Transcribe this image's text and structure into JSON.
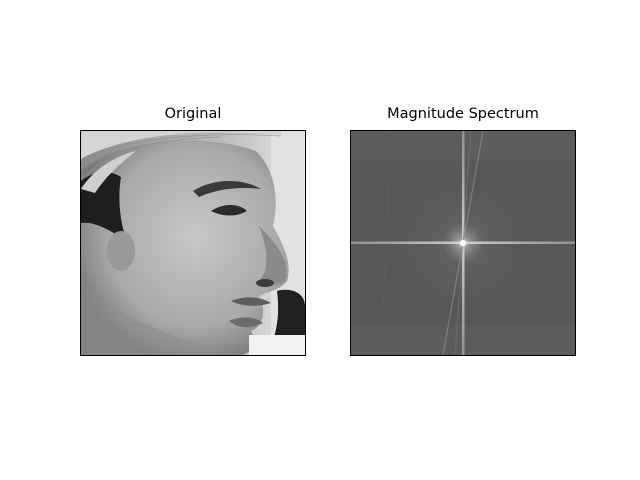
{
  "figure": {
    "panels": [
      {
        "title": "Original",
        "content": "grayscale-face-photo"
      },
      {
        "title": "Magnitude Spectrum",
        "content": "fft-magnitude-spectrum"
      }
    ],
    "colormap": "gray"
  }
}
